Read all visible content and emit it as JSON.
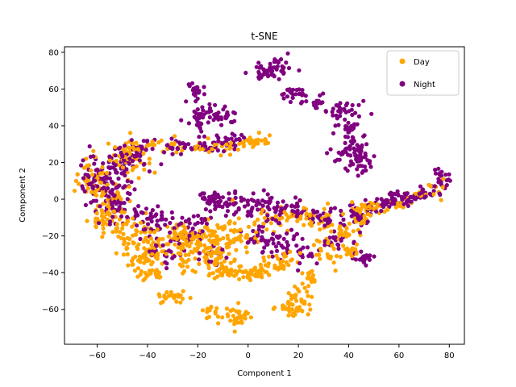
{
  "chart_data": {
    "type": "scatter",
    "title": "t-SNE",
    "xlabel": "Component 1",
    "ylabel": "Component 2",
    "xlim": [
      -73,
      86
    ],
    "ylim": [
      -79,
      83
    ],
    "x_ticks": [
      -60,
      -40,
      -20,
      0,
      20,
      40,
      60,
      80
    ],
    "y_ticks": [
      -60,
      -40,
      -20,
      0,
      20,
      40,
      60,
      80
    ],
    "x_tick_labels": [
      "−60",
      "−40",
      "−20",
      "0",
      "20",
      "40",
      "60",
      "80"
    ],
    "y_tick_labels": [
      "−60",
      "−40",
      "−20",
      "0",
      "20",
      "40",
      "60",
      "80"
    ],
    "grid": false,
    "legend_position": "top-right",
    "series": [
      {
        "name": "Day",
        "color": "#FFA500",
        "clusters": [
          {
            "cx": -62,
            "cy": 12,
            "sx": 3,
            "sy": 6,
            "n": 40
          },
          {
            "cx": -55,
            "cy": 2,
            "sx": 4,
            "sy": 6,
            "n": 50
          },
          {
            "cx": -50,
            "cy": 22,
            "sx": 5,
            "sy": 5,
            "n": 35
          },
          {
            "cx": -44,
            "cy": 28,
            "sx": 4,
            "sy": 3,
            "n": 30
          },
          {
            "cx": -55,
            "cy": -12,
            "sx": 4,
            "sy": 4,
            "n": 35
          },
          {
            "cx": -45,
            "cy": -18,
            "sx": 5,
            "sy": 5,
            "n": 45
          },
          {
            "cx": -40,
            "cy": -28,
            "sx": 5,
            "sy": 4,
            "n": 40
          },
          {
            "cx": -42,
            "cy": -34,
            "sx": 3,
            "sy": 2,
            "n": 20
          },
          {
            "cx": -38,
            "cy": -41,
            "sx": 3,
            "sy": 2,
            "n": 25
          },
          {
            "cx": -30,
            "cy": -53,
            "sx": 3,
            "sy": 2,
            "n": 25
          },
          {
            "cx": -27,
            "cy": -20,
            "sx": 5,
            "sy": 4,
            "n": 50
          },
          {
            "cx": -18,
            "cy": -22,
            "sx": 5,
            "sy": 5,
            "n": 55
          },
          {
            "cx": -12,
            "cy": -32,
            "sx": 4,
            "sy": 3,
            "n": 40
          },
          {
            "cx": -10,
            "cy": -40,
            "sx": 3,
            "sy": 2,
            "n": 25
          },
          {
            "cx": -5,
            "cy": -20,
            "sx": 5,
            "sy": 5,
            "n": 55
          },
          {
            "cx": 0,
            "cy": -40,
            "sx": 5,
            "sy": 2,
            "n": 45
          },
          {
            "cx": 8,
            "cy": -38,
            "sx": 3,
            "sy": 2,
            "n": 20
          },
          {
            "cx": 13,
            "cy": -33,
            "sx": 3,
            "sy": 2,
            "n": 20
          },
          {
            "cx": -15,
            "cy": -62,
            "sx": 2,
            "sy": 2,
            "n": 12
          },
          {
            "cx": -5,
            "cy": -65,
            "sx": 3,
            "sy": 3,
            "n": 35
          },
          {
            "cx": 18,
            "cy": -60,
            "sx": 4,
            "sy": 2,
            "n": 30
          },
          {
            "cx": 3,
            "cy": 31,
            "sx": 3,
            "sy": 2,
            "n": 25
          },
          {
            "cx": -8,
            "cy": 28,
            "sx": 3,
            "sy": 2,
            "n": 15
          },
          {
            "cx": -30,
            "cy": 29,
            "sx": 3,
            "sy": 2,
            "n": 15
          },
          {
            "cx": -18,
            "cy": 28,
            "sx": 3,
            "sy": 2,
            "n": 12
          },
          {
            "cx": 20,
            "cy": -8,
            "sx": 4,
            "sy": 3,
            "n": 20
          },
          {
            "cx": 28,
            "cy": -12,
            "sx": 4,
            "sy": 3,
            "n": 20
          },
          {
            "cx": 33,
            "cy": -28,
            "sx": 3,
            "sy": 4,
            "n": 30
          },
          {
            "cx": 38,
            "cy": -18,
            "sx": 3,
            "sy": 3,
            "n": 20
          },
          {
            "cx": 44,
            "cy": -10,
            "sx": 3,
            "sy": 3,
            "n": 25
          },
          {
            "cx": 48,
            "cy": -5,
            "sx": 3,
            "sy": 2,
            "n": 20
          },
          {
            "cx": 41,
            "cy": -28,
            "sx": 2,
            "sy": 2,
            "n": 12
          },
          {
            "cx": 22,
            "cy": -52,
            "sx": 3,
            "sy": 3,
            "n": 25
          },
          {
            "cx": 25,
            "cy": -42,
            "sx": 2,
            "sy": 2,
            "n": 12
          },
          {
            "cx": 58,
            "cy": -3,
            "sx": 3,
            "sy": 2,
            "n": 12
          },
          {
            "cx": 68,
            "cy": 1,
            "sx": 3,
            "sy": 2,
            "n": 15
          },
          {
            "cx": 75,
            "cy": 7,
            "sx": 2,
            "sy": 3,
            "n": 10
          },
          {
            "cx": 10,
            "cy": -10,
            "sx": 4,
            "sy": 4,
            "n": 20
          },
          {
            "cx": -25,
            "cy": -35,
            "sx": 3,
            "sy": 3,
            "n": 15
          }
        ]
      },
      {
        "name": "Night",
        "color": "#800080",
        "clusters": [
          {
            "cx": -62,
            "cy": 10,
            "sx": 3,
            "sy": 6,
            "n": 40
          },
          {
            "cx": -55,
            "cy": 8,
            "sx": 4,
            "sy": 7,
            "n": 60
          },
          {
            "cx": -50,
            "cy": 20,
            "sx": 4,
            "sy": 6,
            "n": 40
          },
          {
            "cx": -45,
            "cy": 26,
            "sx": 4,
            "sy": 3,
            "n": 35
          },
          {
            "cx": -52,
            "cy": -5,
            "sx": 4,
            "sy": 5,
            "n": 30
          },
          {
            "cx": -40,
            "cy": -10,
            "sx": 4,
            "sy": 4,
            "n": 25
          },
          {
            "cx": -35,
            "cy": -15,
            "sx": 4,
            "sy": 4,
            "n": 25
          },
          {
            "cx": -32,
            "cy": -28,
            "sx": 4,
            "sy": 4,
            "n": 25
          },
          {
            "cx": -27,
            "cy": 29,
            "sx": 4,
            "sy": 2,
            "n": 25
          },
          {
            "cx": -15,
            "cy": 29,
            "sx": 4,
            "sy": 2,
            "n": 20
          },
          {
            "cx": -20,
            "cy": 58,
            "sx": 2,
            "sy": 3,
            "n": 25
          },
          {
            "cx": -17,
            "cy": 46,
            "sx": 3,
            "sy": 3,
            "n": 30
          },
          {
            "cx": -10,
            "cy": 45,
            "sx": 3,
            "sy": 3,
            "n": 20
          },
          {
            "cx": -20,
            "cy": 40,
            "sx": 2,
            "sy": 2,
            "n": 10
          },
          {
            "cx": -7,
            "cy": 33,
            "sx": 3,
            "sy": 3,
            "n": 20
          },
          {
            "cx": -15,
            "cy": 0,
            "sx": 3,
            "sy": 2,
            "n": 25
          },
          {
            "cx": -8,
            "cy": -2,
            "sx": 4,
            "sy": 3,
            "n": 30
          },
          {
            "cx": 2,
            "cy": -3,
            "sx": 4,
            "sy": 3,
            "n": 25
          },
          {
            "cx": 10,
            "cy": -5,
            "sx": 4,
            "sy": 3,
            "n": 30
          },
          {
            "cx": 18,
            "cy": -6,
            "sx": 4,
            "sy": 3,
            "n": 25
          },
          {
            "cx": 5,
            "cy": -20,
            "sx": 4,
            "sy": 4,
            "n": 30
          },
          {
            "cx": 15,
            "cy": -22,
            "sx": 4,
            "sy": 4,
            "n": 25
          },
          {
            "cx": 22,
            "cy": -30,
            "sx": 3,
            "sy": 3,
            "n": 20
          },
          {
            "cx": 30,
            "cy": -10,
            "sx": 4,
            "sy": 3,
            "n": 25
          },
          {
            "cx": 35,
            "cy": -22,
            "sx": 3,
            "sy": 3,
            "n": 20
          },
          {
            "cx": 42,
            "cy": -8,
            "sx": 4,
            "sy": 3,
            "n": 35
          },
          {
            "cx": 46,
            "cy": -32,
            "sx": 2,
            "sy": 2,
            "n": 25
          },
          {
            "cx": 8,
            "cy": 70,
            "sx": 4,
            "sy": 2,
            "n": 40
          },
          {
            "cx": 12,
            "cy": 74,
            "sx": 2,
            "sy": 2,
            "n": 15
          },
          {
            "cx": 20,
            "cy": 57,
            "sx": 3,
            "sy": 3,
            "n": 25
          },
          {
            "cx": 26,
            "cy": 52,
            "sx": 2,
            "sy": 2,
            "n": 15
          },
          {
            "cx": 38,
            "cy": 48,
            "sx": 4,
            "sy": 2,
            "n": 30
          },
          {
            "cx": 40,
            "cy": 38,
            "sx": 3,
            "sy": 3,
            "n": 25
          },
          {
            "cx": 43,
            "cy": 28,
            "sx": 3,
            "sy": 3,
            "n": 30
          },
          {
            "cx": 45,
            "cy": 20,
            "sx": 3,
            "sy": 3,
            "n": 30
          },
          {
            "cx": 36,
            "cy": 24,
            "sx": 2,
            "sy": 2,
            "n": 10
          },
          {
            "cx": 55,
            "cy": -2,
            "sx": 3,
            "sy": 2,
            "n": 25
          },
          {
            "cx": 62,
            "cy": 0,
            "sx": 3,
            "sy": 2,
            "n": 20
          },
          {
            "cx": 70,
            "cy": 4,
            "sx": 3,
            "sy": 3,
            "n": 25
          },
          {
            "cx": 77,
            "cy": 11,
            "sx": 2,
            "sy": 3,
            "n": 20
          },
          {
            "cx": 58,
            "cy": 3,
            "sx": 2,
            "sy": 1,
            "n": 10
          },
          {
            "cx": -22,
            "cy": -12,
            "sx": 4,
            "sy": 3,
            "n": 20
          },
          {
            "cx": -25,
            "cy": -22,
            "sx": 3,
            "sy": 3,
            "n": 15
          },
          {
            "cx": -14,
            "cy": -30,
            "sx": 3,
            "sy": 3,
            "n": 15
          }
        ]
      }
    ]
  }
}
